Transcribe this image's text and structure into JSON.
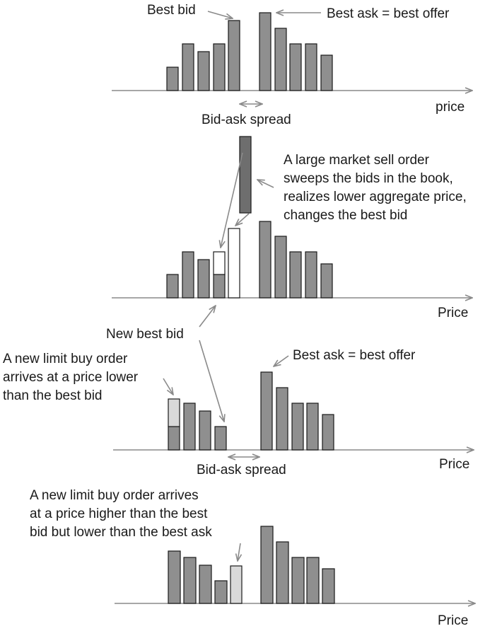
{
  "colors": {
    "bar_fill": "#8f8f8f",
    "bar_dark": "#6e6e6e",
    "bar_new_order": "#d9d9d9",
    "bar_executed": "#ffffff",
    "axis": "#8a8a8a",
    "text": "#1a1a1a"
  },
  "panel1": {
    "best_bid": "Best bid",
    "best_ask": "Best ask = best offer",
    "spread": "Bid-ask spread",
    "axis_label": "price"
  },
  "panel2": {
    "sell_order_lines": [
      "A large market sell order",
      "sweeps the bids in the book,",
      "realizes lower aggregate price,",
      "changes the best bid"
    ],
    "axis_label": "Price"
  },
  "panel3": {
    "new_best_bid": "New best bid",
    "new_order_lines": [
      "A new limit buy order",
      "arrives at a price lower",
      "than the best bid"
    ],
    "best_ask": "Best ask = best offer",
    "spread": "Bid-ask spread",
    "axis_label": "Price"
  },
  "panel4": {
    "new_order_lines": [
      "A new limit buy order arrives",
      "at a price higher than the best",
      "bid but lower than the best ask"
    ],
    "axis_label": "Price"
  }
}
